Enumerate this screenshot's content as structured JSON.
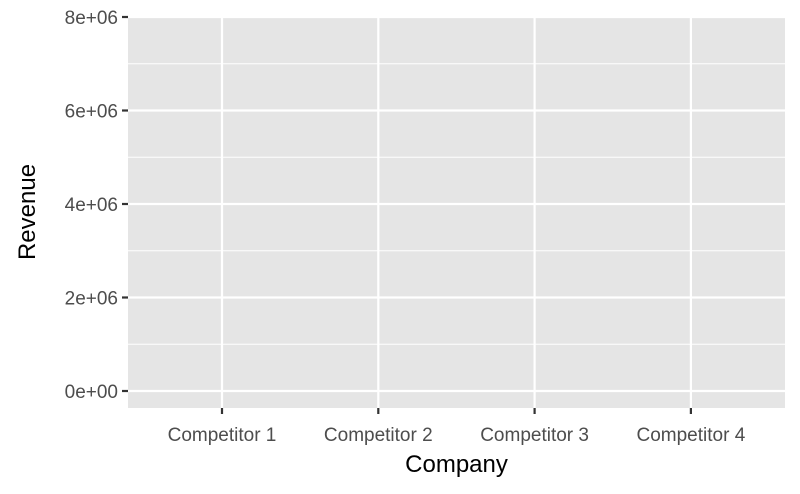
{
  "chart_data": {
    "type": "bar",
    "categories": [
      "Competitor 1",
      "Competitor 2",
      "Competitor 3",
      "Competitor 4"
    ],
    "values": [
      0,
      0,
      0,
      0
    ],
    "xlabel": "Company",
    "ylabel": "Revenue",
    "ylim": [
      0,
      8000000
    ],
    "y_ticks": [
      0,
      2000000,
      4000000,
      6000000,
      8000000
    ],
    "y_tick_labels": [
      "0e+00",
      "2e+06",
      "4e+06",
      "6e+06",
      "8e+06"
    ],
    "grid": true,
    "legend": "none",
    "colors": {
      "panel_background": "#e5e5e5",
      "grid": "#ffffff",
      "tick_mark": "#333333",
      "tick_label": "#4d4d4d"
    }
  }
}
